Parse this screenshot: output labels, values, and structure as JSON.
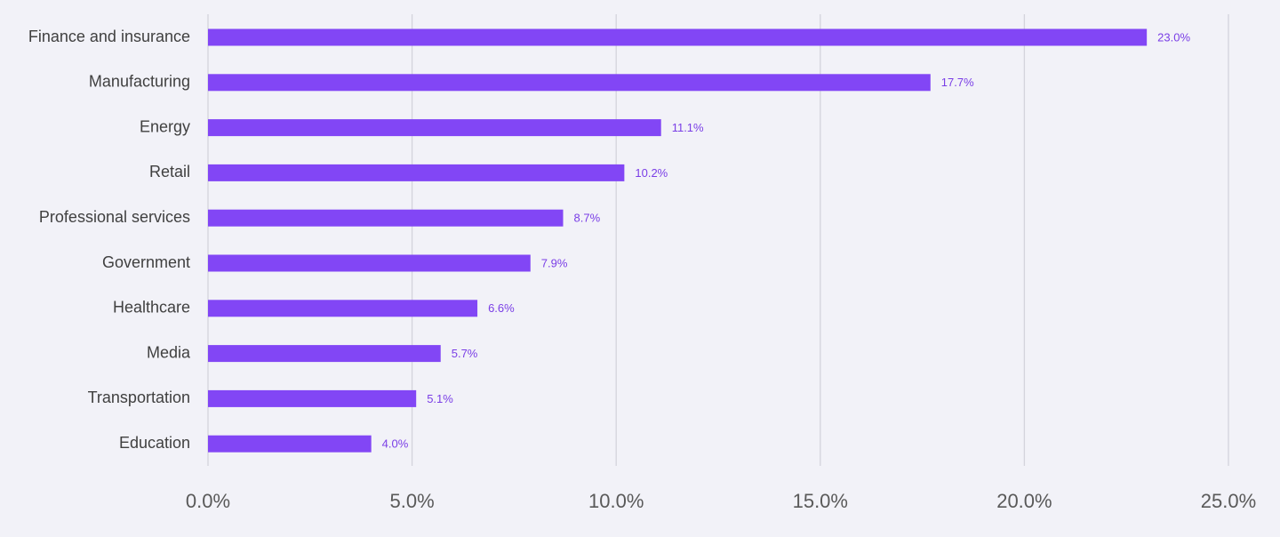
{
  "chart_data": {
    "type": "bar",
    "orientation": "horizontal",
    "categories": [
      "Finance and insurance",
      "Manufacturing",
      "Energy",
      "Retail",
      "Professional services",
      "Government",
      "Healthcare",
      "Media",
      "Transportation",
      "Education"
    ],
    "values": [
      23.0,
      17.7,
      11.1,
      10.2,
      8.7,
      7.9,
      6.6,
      5.7,
      5.1,
      4.0
    ],
    "data_labels": [
      "23.0%",
      "17.7%",
      "11.1%",
      "10.2%",
      "8.7%",
      "7.9%",
      "6.6%",
      "5.7%",
      "5.1%",
      "4.0%"
    ],
    "x_ticks": [
      0,
      5,
      10,
      15,
      20,
      25
    ],
    "x_tick_labels": [
      "0.0%",
      "5.0%",
      "10.0%",
      "15.0%",
      "20.0%",
      "25.0%"
    ],
    "xlim": [
      0,
      25
    ],
    "title": "",
    "xlabel": "",
    "ylabel": "",
    "grid": "vertical",
    "legend": "none",
    "colors": {
      "bar": "#8246f5",
      "data_label": "#7a3ee6",
      "background": "#f2f2f8",
      "grid": "#d4d4dc"
    }
  }
}
